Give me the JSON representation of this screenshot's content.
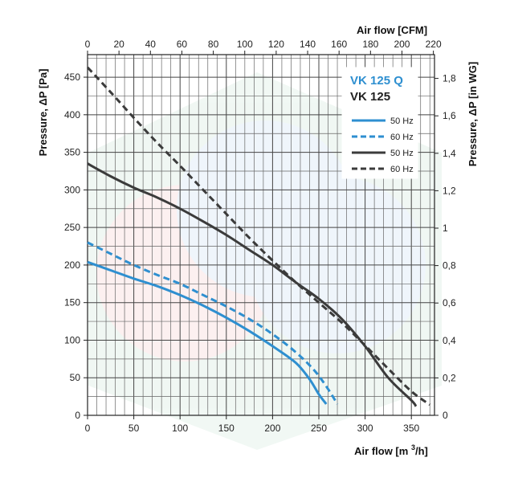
{
  "chart_data": {
    "type": "line",
    "x_bottom": {
      "label": "Air flow [m 3/h]",
      "label_main": "Air flow [m ",
      "label_sup": "3",
      "label_end": "/h]",
      "range": [
        0,
        375
      ],
      "ticks": [
        0,
        50,
        100,
        150,
        200,
        250,
        300,
        350
      ]
    },
    "x_top": {
      "label": "Air flow [CFM]",
      "range": [
        0,
        220.7
      ],
      "ticks": [
        0,
        20,
        40,
        60,
        80,
        100,
        120,
        140,
        160,
        180,
        200,
        220
      ]
    },
    "y_left": {
      "label": "Pressure, ΔP [Pa]",
      "range": [
        0,
        480
      ],
      "ticks": [
        0,
        50,
        100,
        150,
        200,
        250,
        300,
        350,
        400,
        450
      ]
    },
    "y_right": {
      "label": "Pressure, ΔP [in WG]",
      "range": [
        0,
        1.927
      ],
      "ticks": [
        "0",
        "0,2",
        "0,4",
        "0,6",
        "0,8",
        "1",
        "1,2",
        "1,4",
        "1,6",
        "1,8"
      ],
      "tick_values": [
        0,
        0.2,
        0.4,
        0.6,
        0.8,
        1.0,
        1.2,
        1.4,
        1.6,
        1.8
      ]
    },
    "grid": true,
    "legend": {
      "placement": "top-right",
      "title_q": "VK 125 Q",
      "title_b": "VK 125",
      "entries": [
        "50 Hz",
        "60 Hz",
        "50 Hz",
        "60 Hz"
      ]
    },
    "series": [
      {
        "group": "VK 125 Q",
        "freq": "50 Hz",
        "color": "#2e8fd0",
        "dashed": false,
        "x": [
          0,
          25,
          50,
          75,
          100,
          125,
          150,
          175,
          200,
          225,
          240,
          250,
          258
        ],
        "y": [
          204,
          193,
          182,
          172,
          160,
          146,
          130,
          112,
          92,
          70,
          48,
          28,
          15
        ]
      },
      {
        "group": "VK 125 Q",
        "freq": "60 Hz",
        "color": "#2e8fd0",
        "dashed": true,
        "x": [
          0,
          25,
          50,
          75,
          100,
          125,
          150,
          175,
          200,
          225,
          245,
          260,
          270
        ],
        "y": [
          230,
          215,
          200,
          187,
          175,
          160,
          145,
          128,
          108,
          84,
          60,
          35,
          15
        ]
      },
      {
        "group": "VK 125",
        "freq": "50 Hz",
        "color": "#3b3b3b",
        "dashed": false,
        "x": [
          0,
          25,
          50,
          75,
          100,
          125,
          150,
          175,
          200,
          225,
          250,
          275,
          300,
          325,
          350,
          355
        ],
        "y": [
          335,
          318,
          303,
          290,
          275,
          258,
          240,
          220,
          200,
          177,
          155,
          128,
          92,
          50,
          20,
          12
        ]
      },
      {
        "group": "VK 125",
        "freq": "60 Hz",
        "color": "#3b3b3b",
        "dashed": true,
        "x": [
          0,
          25,
          50,
          75,
          100,
          125,
          150,
          175,
          200,
          225,
          250,
          275,
          300,
          325,
          350,
          370
        ],
        "y": [
          463,
          430,
          396,
          363,
          332,
          300,
          268,
          236,
          206,
          177,
          150,
          123,
          93,
          62,
          32,
          14
        ]
      }
    ]
  }
}
